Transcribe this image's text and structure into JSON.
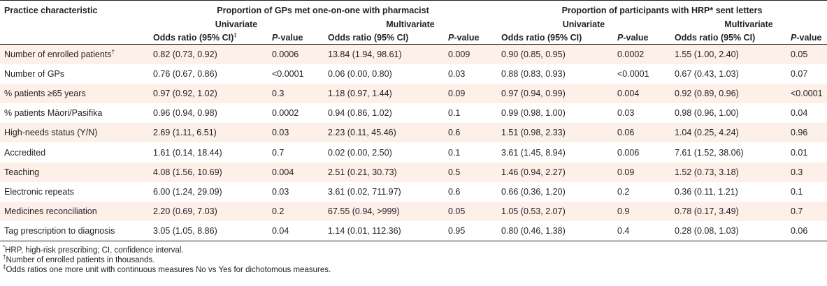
{
  "header": {
    "col_characteristic": "Practice characteristic",
    "group1_title": "Proportion of GPs met one-on-one with pharmacist",
    "group2_title": "Proportion of participants with HRP* sent letters",
    "univariate": "Univariate",
    "multivariate": "Multivariate",
    "odds_ratio_ci": "Odds ratio (95% CI)",
    "odds_ratio_ci_sup": "‡",
    "p_italic": "P",
    "p_rest": "-value"
  },
  "rows": [
    {
      "label": "Number of enrolled patients",
      "label_sup": "†",
      "g1_uni_or": "0.82 (0.73, 0.92)",
      "g1_uni_p": "0.0006",
      "g1_multi_or": "13.84 (1.94, 98.61)",
      "g1_multi_p": "0.009",
      "g2_uni_or": "0.90 (0.85, 0.95)",
      "g2_uni_p": "0.0002",
      "g2_multi_or": "1.55 (1.00, 2.40)",
      "g2_multi_p": "0.05"
    },
    {
      "label": "Number of GPs",
      "label_sup": "",
      "g1_uni_or": "0.76 (0.67, 0.86)",
      "g1_uni_p": "<0.0001",
      "g1_multi_or": "0.06 (0.00, 0.80)",
      "g1_multi_p": "0.03",
      "g2_uni_or": "0.88 (0.83, 0.93)",
      "g2_uni_p": "<0.0001",
      "g2_multi_or": "0.67 (0.43, 1.03)",
      "g2_multi_p": "0.07"
    },
    {
      "label": "% patients ≥65 years",
      "label_sup": "",
      "g1_uni_or": "0.97 (0.92, 1.02)",
      "g1_uni_p": "0.3",
      "g1_multi_or": "1.18 (0.97, 1.44)",
      "g1_multi_p": "0.09",
      "g2_uni_or": "0.97 (0.94, 0.99)",
      "g2_uni_p": "0.004",
      "g2_multi_or": "0.92 (0.89, 0.96)",
      "g2_multi_p": "<0.0001"
    },
    {
      "label": "% patients Māori/Pasifika",
      "label_sup": "",
      "g1_uni_or": "0.96 (0.94, 0.98)",
      "g1_uni_p": "0.0002",
      "g1_multi_or": "0.94 (0.86, 1.02)",
      "g1_multi_p": "0.1",
      "g2_uni_or": "0.99 (0.98, 1.00)",
      "g2_uni_p": "0.03",
      "g2_multi_or": "0.98 (0.96, 1.00)",
      "g2_multi_p": "0.04"
    },
    {
      "label": "High-needs status (Y/N)",
      "label_sup": "",
      "g1_uni_or": "2.69 (1.11, 6.51)",
      "g1_uni_p": "0.03",
      "g1_multi_or": "2.23 (0.11, 45.46)",
      "g1_multi_p": "0.6",
      "g2_uni_or": "1.51 (0.98, 2.33)",
      "g2_uni_p": "0.06",
      "g2_multi_or": "1.04 (0.25, 4.24)",
      "g2_multi_p": "0.96"
    },
    {
      "label": "Accredited",
      "label_sup": "",
      "g1_uni_or": "1.61 (0.14, 18.44)",
      "g1_uni_p": "0.7",
      "g1_multi_or": "0.02 (0.00, 2.50)",
      "g1_multi_p": "0.1",
      "g2_uni_or": "3.61 (1.45, 8.94)",
      "g2_uni_p": "0.006",
      "g2_multi_or": "7.61 (1.52, 38.06)",
      "g2_multi_p": "0.01"
    },
    {
      "label": "Teaching",
      "label_sup": "",
      "g1_uni_or": "4.08 (1.56, 10.69)",
      "g1_uni_p": "0.004",
      "g1_multi_or": "2.51 (0.21, 30.73)",
      "g1_multi_p": "0.5",
      "g2_uni_or": "1.46 (0.94, 2.27)",
      "g2_uni_p": "0.09",
      "g2_multi_or": "1.52 (0.73, 3.18)",
      "g2_multi_p": "0.3"
    },
    {
      "label": "Electronic repeats",
      "label_sup": "",
      "g1_uni_or": "6.00 (1.24, 29.09)",
      "g1_uni_p": "0.03",
      "g1_multi_or": "3.61 (0.02, 711.97)",
      "g1_multi_p": "0.6",
      "g2_uni_or": "0.66 (0.36, 1.20)",
      "g2_uni_p": "0.2",
      "g2_multi_or": "0.36 (0.11, 1.21)",
      "g2_multi_p": "0.1"
    },
    {
      "label": "Medicines reconciliation",
      "label_sup": "",
      "g1_uni_or": "2.20 (0.69, 7.03)",
      "g1_uni_p": "0.2",
      "g1_multi_or": "67.55 (0.94, >999)",
      "g1_multi_p": "0.05",
      "g2_uni_or": "1.05 (0.53, 2.07)",
      "g2_uni_p": "0.9",
      "g2_multi_or": "0.78 (0.17, 3.49)",
      "g2_multi_p": "0.7"
    },
    {
      "label": "Tag prescription to diagnosis",
      "label_sup": "",
      "g1_uni_or": "3.05 (1.05, 8.86)",
      "g1_uni_p": "0.04",
      "g1_multi_or": "1.14 (0.01, 112.36)",
      "g1_multi_p": "0.95",
      "g2_uni_or": "0.80 (0.46, 1.38)",
      "g2_uni_p": "0.4",
      "g2_multi_or": "0.28 (0.08, 1.03)",
      "g2_multi_p": "0.06"
    }
  ],
  "footnotes": [
    {
      "mark": "*",
      "text": "HRP, high-risk prescribing; CI, confidence interval."
    },
    {
      "mark": "†",
      "text": "Number of enrolled patients in thousands."
    },
    {
      "mark": "‡",
      "text": "Odds ratios one more unit with continuous measures No vs Yes for dichotomous measures."
    }
  ],
  "colors": {
    "row_shade": "#fcf0e8",
    "text": "#231f20"
  }
}
